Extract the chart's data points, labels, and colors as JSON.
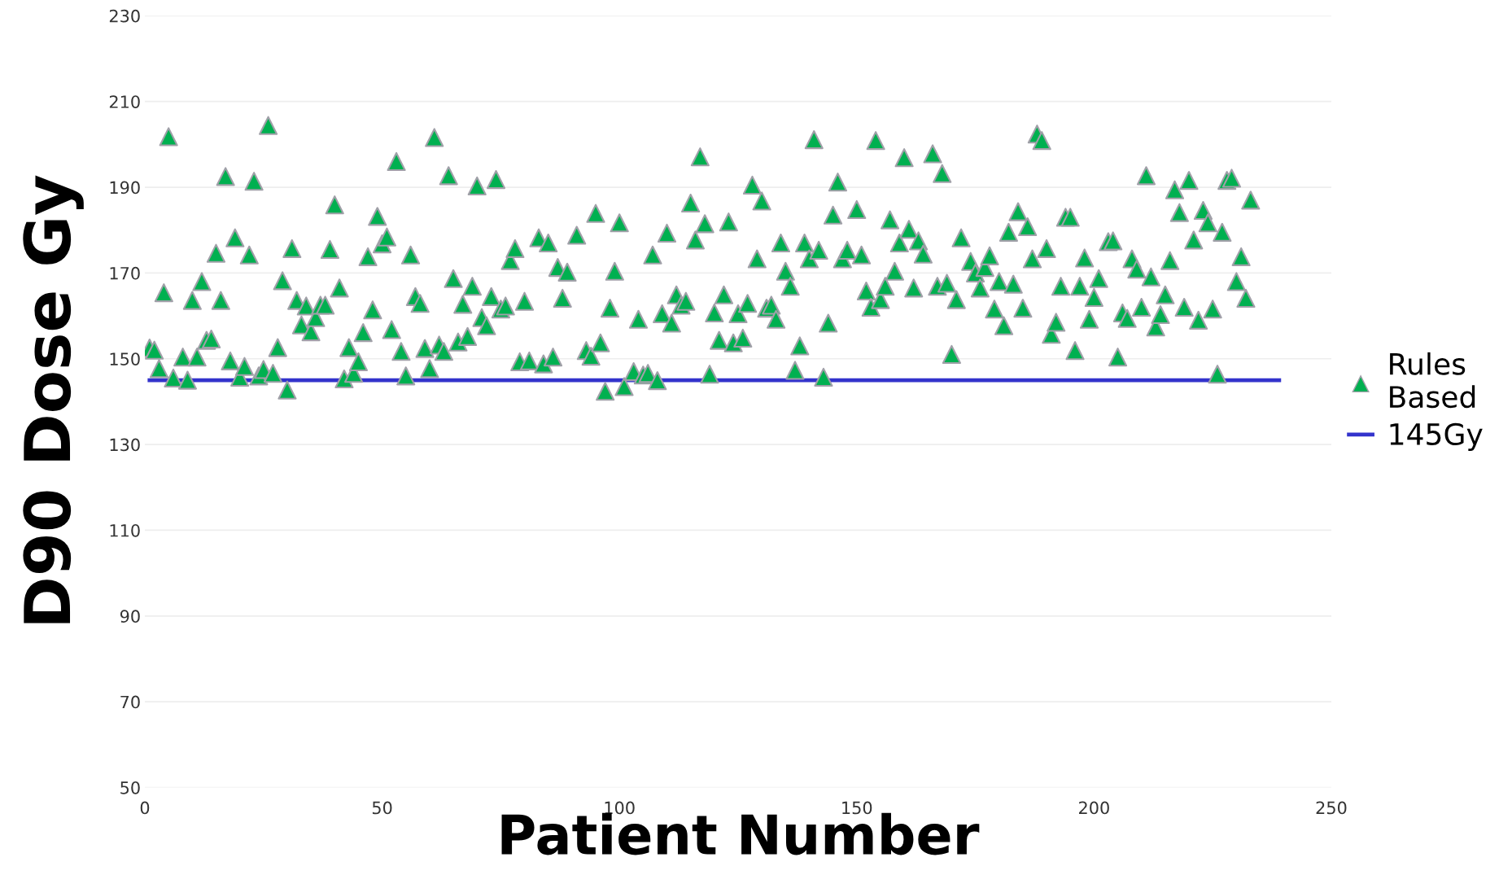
{
  "chart_data": {
    "type": "scatter",
    "xlabel": "Patient Number",
    "ylabel": "D90 Dose Gy",
    "xlim": [
      0,
      250
    ],
    "xticks": [
      0,
      50,
      100,
      150,
      200,
      250
    ],
    "ylim": [
      50,
      230
    ],
    "yticks": [
      50,
      70,
      90,
      110,
      130,
      150,
      170,
      190,
      210,
      230
    ],
    "grid": "y",
    "legend": "right",
    "series": [
      {
        "name": "Rules Based",
        "marker": "triangle",
        "color": "#00b050",
        "x": [
          1,
          2,
          3,
          4,
          5,
          6,
          8,
          9,
          10,
          11,
          12,
          13,
          14,
          15,
          16,
          17,
          18,
          19,
          20,
          21,
          22,
          23,
          24,
          25,
          26,
          27,
          28,
          29,
          30,
          31,
          32,
          33,
          34,
          35,
          36,
          37,
          38,
          39,
          40,
          41,
          42,
          43,
          44,
          45,
          46,
          47,
          48,
          49,
          50,
          51,
          52,
          53,
          54,
          55,
          56,
          57,
          58,
          59,
          60,
          61,
          62,
          63,
          64,
          65,
          66,
          67,
          68,
          69,
          70,
          71,
          72,
          73,
          74,
          75,
          76,
          77,
          78,
          79,
          80,
          81,
          83,
          84,
          85,
          86,
          87,
          88,
          89,
          91,
          93,
          94,
          95,
          96,
          97,
          98,
          99,
          100,
          101,
          103,
          104,
          105,
          106,
          107,
          108,
          109,
          110,
          111,
          112,
          113,
          114,
          115,
          116,
          117,
          118,
          119,
          120,
          121,
          122,
          123,
          124,
          125,
          126,
          127,
          128,
          129,
          130,
          131,
          132,
          133,
          134,
          135,
          136,
          137,
          138,
          139,
          140,
          141,
          142,
          143,
          144,
          145,
          146,
          147,
          148,
          150,
          151,
          152,
          153,
          154,
          155,
          156,
          157,
          158,
          159,
          160,
          161,
          162,
          163,
          164,
          166,
          167,
          168,
          169,
          170,
          171,
          172,
          174,
          175,
          176,
          177,
          178,
          179,
          180,
          181,
          182,
          183,
          184,
          185,
          186,
          187,
          188,
          189,
          190,
          191,
          192,
          193,
          194,
          195,
          196,
          197,
          198,
          199,
          200,
          201,
          203,
          204,
          205,
          206,
          207,
          208,
          209,
          210,
          211,
          212,
          213,
          214,
          215,
          216,
          217,
          218,
          219,
          220,
          221,
          222,
          223,
          224,
          225,
          226,
          227,
          228,
          229,
          230,
          231,
          232,
          233
        ],
        "values": [
          152.5,
          152,
          147.7,
          165.4,
          201.8,
          145.5,
          150.4,
          145,
          163.6,
          150.4,
          168,
          154.3,
          154.6,
          174.6,
          163.6,
          192.5,
          149.5,
          178.2,
          145.7,
          148.2,
          174.2,
          191.4,
          146,
          147.5,
          204.4,
          146.6,
          152.6,
          168.2,
          142.7,
          175.7,
          163.6,
          157.9,
          162.3,
          156.3,
          159.6,
          162.5,
          162.5,
          175.5,
          185.9,
          166.5,
          145.3,
          152.6,
          146.6,
          149.3,
          156.1,
          173.8,
          161.4,
          183.2,
          176.8,
          178.4,
          156.8,
          196,
          151.7,
          146,
          174.2,
          164.5,
          162.9,
          152.4,
          147.7,
          201.6,
          153.2,
          151.7,
          192.7,
          168.7,
          153.9,
          162.7,
          155.2,
          166.9,
          190.3,
          159.6,
          157.7,
          164.5,
          191.8,
          161.6,
          162.3,
          172.9,
          175.7,
          149.3,
          163.4,
          149.5,
          178.2,
          148.8,
          177,
          150.4,
          171.3,
          164.1,
          170.2,
          178.8,
          151.9,
          150.6,
          183.9,
          153.7,
          142.4,
          161.8,
          170.4,
          181.7,
          143.5,
          147,
          159.2,
          146.2,
          146.6,
          174.2,
          144.9,
          160.5,
          179.3,
          158.3,
          164.9,
          162.5,
          163.4,
          186.3,
          177.7,
          197.1,
          181.5,
          146.4,
          160.7,
          154.3,
          164.9,
          181.9,
          153.7,
          160.5,
          154.8,
          162.9,
          190.5,
          173.3,
          186.8,
          161.8,
          162.5,
          159.2,
          177,
          170.4,
          166.9,
          147.3,
          153,
          177,
          173.3,
          201.1,
          175.3,
          145.7,
          158.3,
          183.5,
          191.2,
          173.3,
          175.3,
          184.8,
          174.2,
          165.8,
          162,
          200.9,
          163.8,
          166.9,
          182.4,
          170.4,
          177,
          196.9,
          180.2,
          166.5,
          177.5,
          174.4,
          197.8,
          166.9,
          193.2,
          167.6,
          151,
          163.8,
          178.2,
          172.7,
          170,
          166.5,
          171.3,
          174,
          161.6,
          168,
          157.7,
          179.5,
          167.4,
          184.3,
          161.8,
          180.8,
          173.3,
          202.4,
          200.9,
          175.7,
          155.7,
          158.5,
          166.9,
          183,
          183,
          151.9,
          166.9,
          173.5,
          159.2,
          164.3,
          168.7,
          177.3,
          177.5,
          150.4,
          160.7,
          159.4,
          173.3,
          170.9,
          162,
          192.7,
          169.1,
          157.4,
          160.3,
          164.9,
          172.9,
          189.4,
          184.1,
          162,
          191.6,
          177.7,
          159,
          184.6,
          181.7,
          161.6,
          146.4,
          179.5,
          191.6,
          192.1,
          168,
          173.8,
          164.1,
          187
        ]
      },
      {
        "name": "145Gy",
        "type": "line",
        "marker": "none",
        "line_style": "solid",
        "color": "#3333cc",
        "x": [
          1,
          239
        ],
        "values": [
          145,
          145
        ]
      }
    ]
  }
}
